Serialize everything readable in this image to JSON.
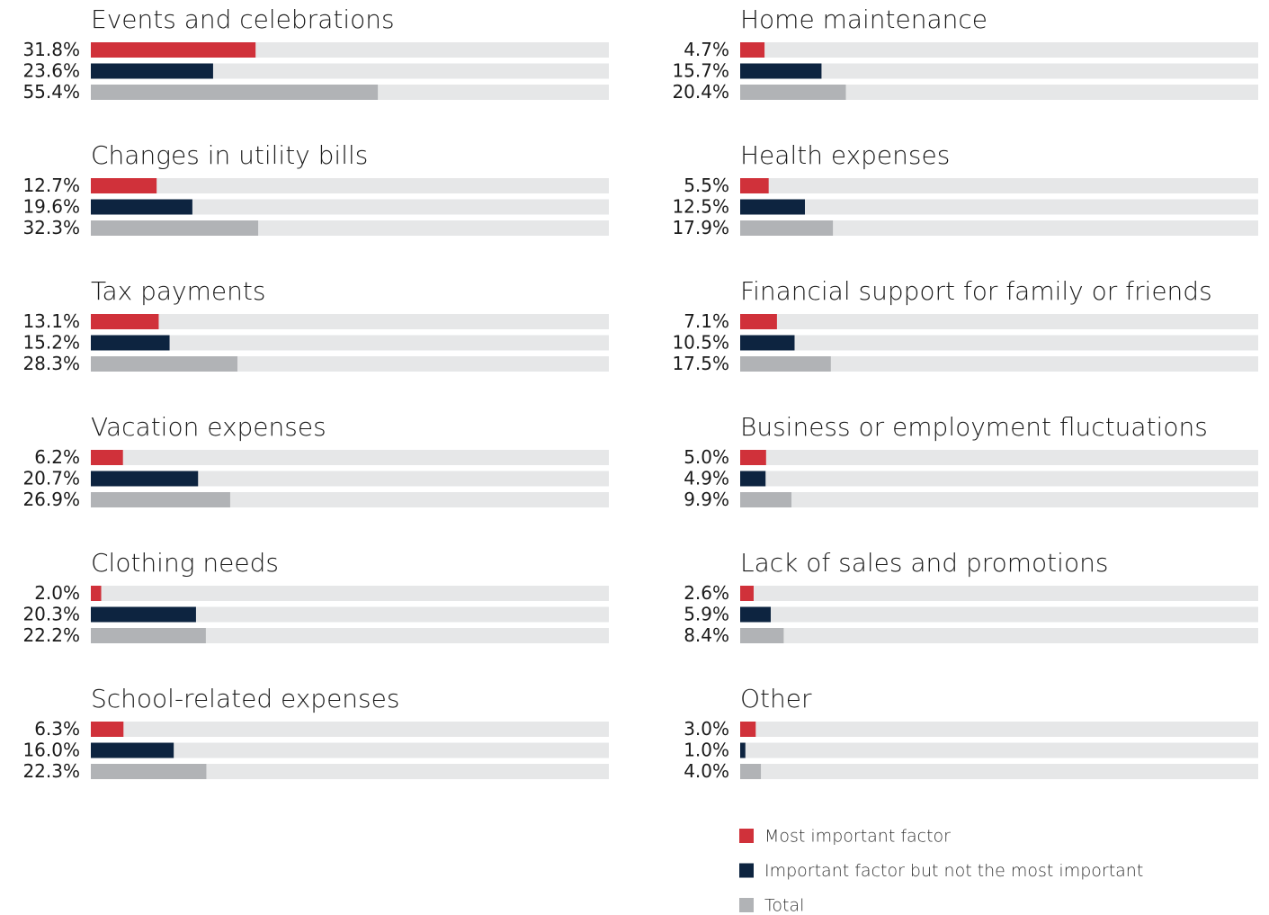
{
  "chart_data": {
    "type": "bar",
    "orientation": "horizontal",
    "categories": [
      "Events and celebrations",
      "Changes in utility bills",
      "Tax payments",
      "Vacation expenses",
      "Clothing needs",
      "School-related expenses",
      "Home maintenance",
      "Health expenses",
      "Financial support for family or friends",
      "Business or employment fluctuations",
      "Lack of sales and promotions",
      "Other"
    ],
    "series": [
      {
        "name": "Most important factor",
        "color": "#d0313a",
        "values": [
          31.8,
          12.7,
          13.1,
          6.2,
          2.0,
          6.3,
          4.7,
          5.5,
          7.1,
          5.0,
          2.6,
          3.0
        ],
        "value_labels": [
          "31.8%",
          "12.7%",
          "13.1%",
          "6.2%",
          "2.0%",
          "6.3%",
          "4.7%",
          "5.5%",
          "7.1%",
          "5.0%",
          "2.6%",
          "3.0%"
        ]
      },
      {
        "name": "Important factor but not the most important",
        "color": "#0d2440",
        "values": [
          23.6,
          19.6,
          15.2,
          20.7,
          20.3,
          16.0,
          15.7,
          12.5,
          10.5,
          4.9,
          5.9,
          1.0
        ],
        "value_labels": [
          "23.6%",
          "19.6%",
          "15.2%",
          "20.7%",
          "20.3%",
          "16.0%",
          "15.7%",
          "12.5%",
          "10.5%",
          "4.9%",
          "5.9%",
          "1.0%"
        ]
      },
      {
        "name": "Total",
        "color": "#b1b3b6",
        "values": [
          55.4,
          32.3,
          28.3,
          26.9,
          22.2,
          22.3,
          20.4,
          17.9,
          17.5,
          9.9,
          8.4,
          4.0
        ],
        "value_labels": [
          "55.4%",
          "32.3%",
          "28.3%",
          "26.9%",
          "22.2%",
          "22.3%",
          "20.4%",
          "17.9%",
          "17.5%",
          "9.9%",
          "8.4%",
          "4.0%"
        ]
      }
    ],
    "xlim": [
      0,
      100
    ],
    "track_color": "#e6e7e8"
  }
}
